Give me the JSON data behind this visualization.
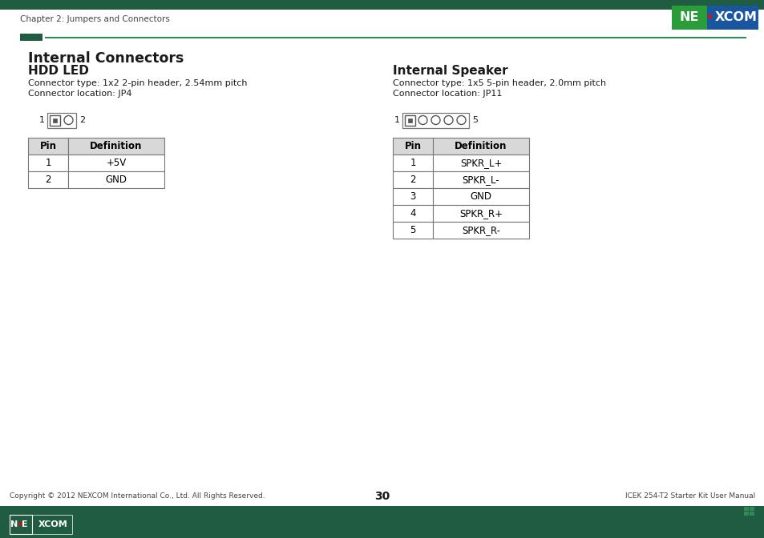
{
  "page_title": "Chapter 2: Jumpers and Connectors",
  "section_title": "Internal Connectors",
  "hdd_led_title": "HDD LED",
  "hdd_led_connector_type": "Connector type: 1x2 2-pin header, 2.54mm pitch",
  "hdd_led_connector_location": "Connector location: JP4",
  "hdd_led_pins": [
    "1",
    "2"
  ],
  "hdd_led_definitions": [
    "+5V",
    "GND"
  ],
  "internal_speaker_title": "Internal Speaker",
  "internal_speaker_connector_type": "Connector type: 1x5 5-pin header, 2.0mm pitch",
  "internal_speaker_connector_location": "Connector location: JP11",
  "internal_speaker_pins": [
    "1",
    "2",
    "3",
    "4",
    "5"
  ],
  "internal_speaker_definitions": [
    "SPKR_L+",
    "SPKR_L-",
    "GND",
    "SPKR_R+",
    "SPKR_R-"
  ],
  "footer_left": "Copyright © 2012 NEXCOM International Co., Ltd. All Rights Reserved.",
  "footer_center": "30",
  "footer_right": "ICEK 254-T2 Starter Kit User Manual",
  "dark_green": "#1f5c41",
  "accent_green": "#2e8b57",
  "table_header_bg": "#d8d8d8",
  "table_border_color": "#777777",
  "nexcom_blue": "#1a56a0",
  "nexcom_green": "#2a9d3a",
  "text_dark": "#1a1a1a",
  "text_gray": "#444444"
}
